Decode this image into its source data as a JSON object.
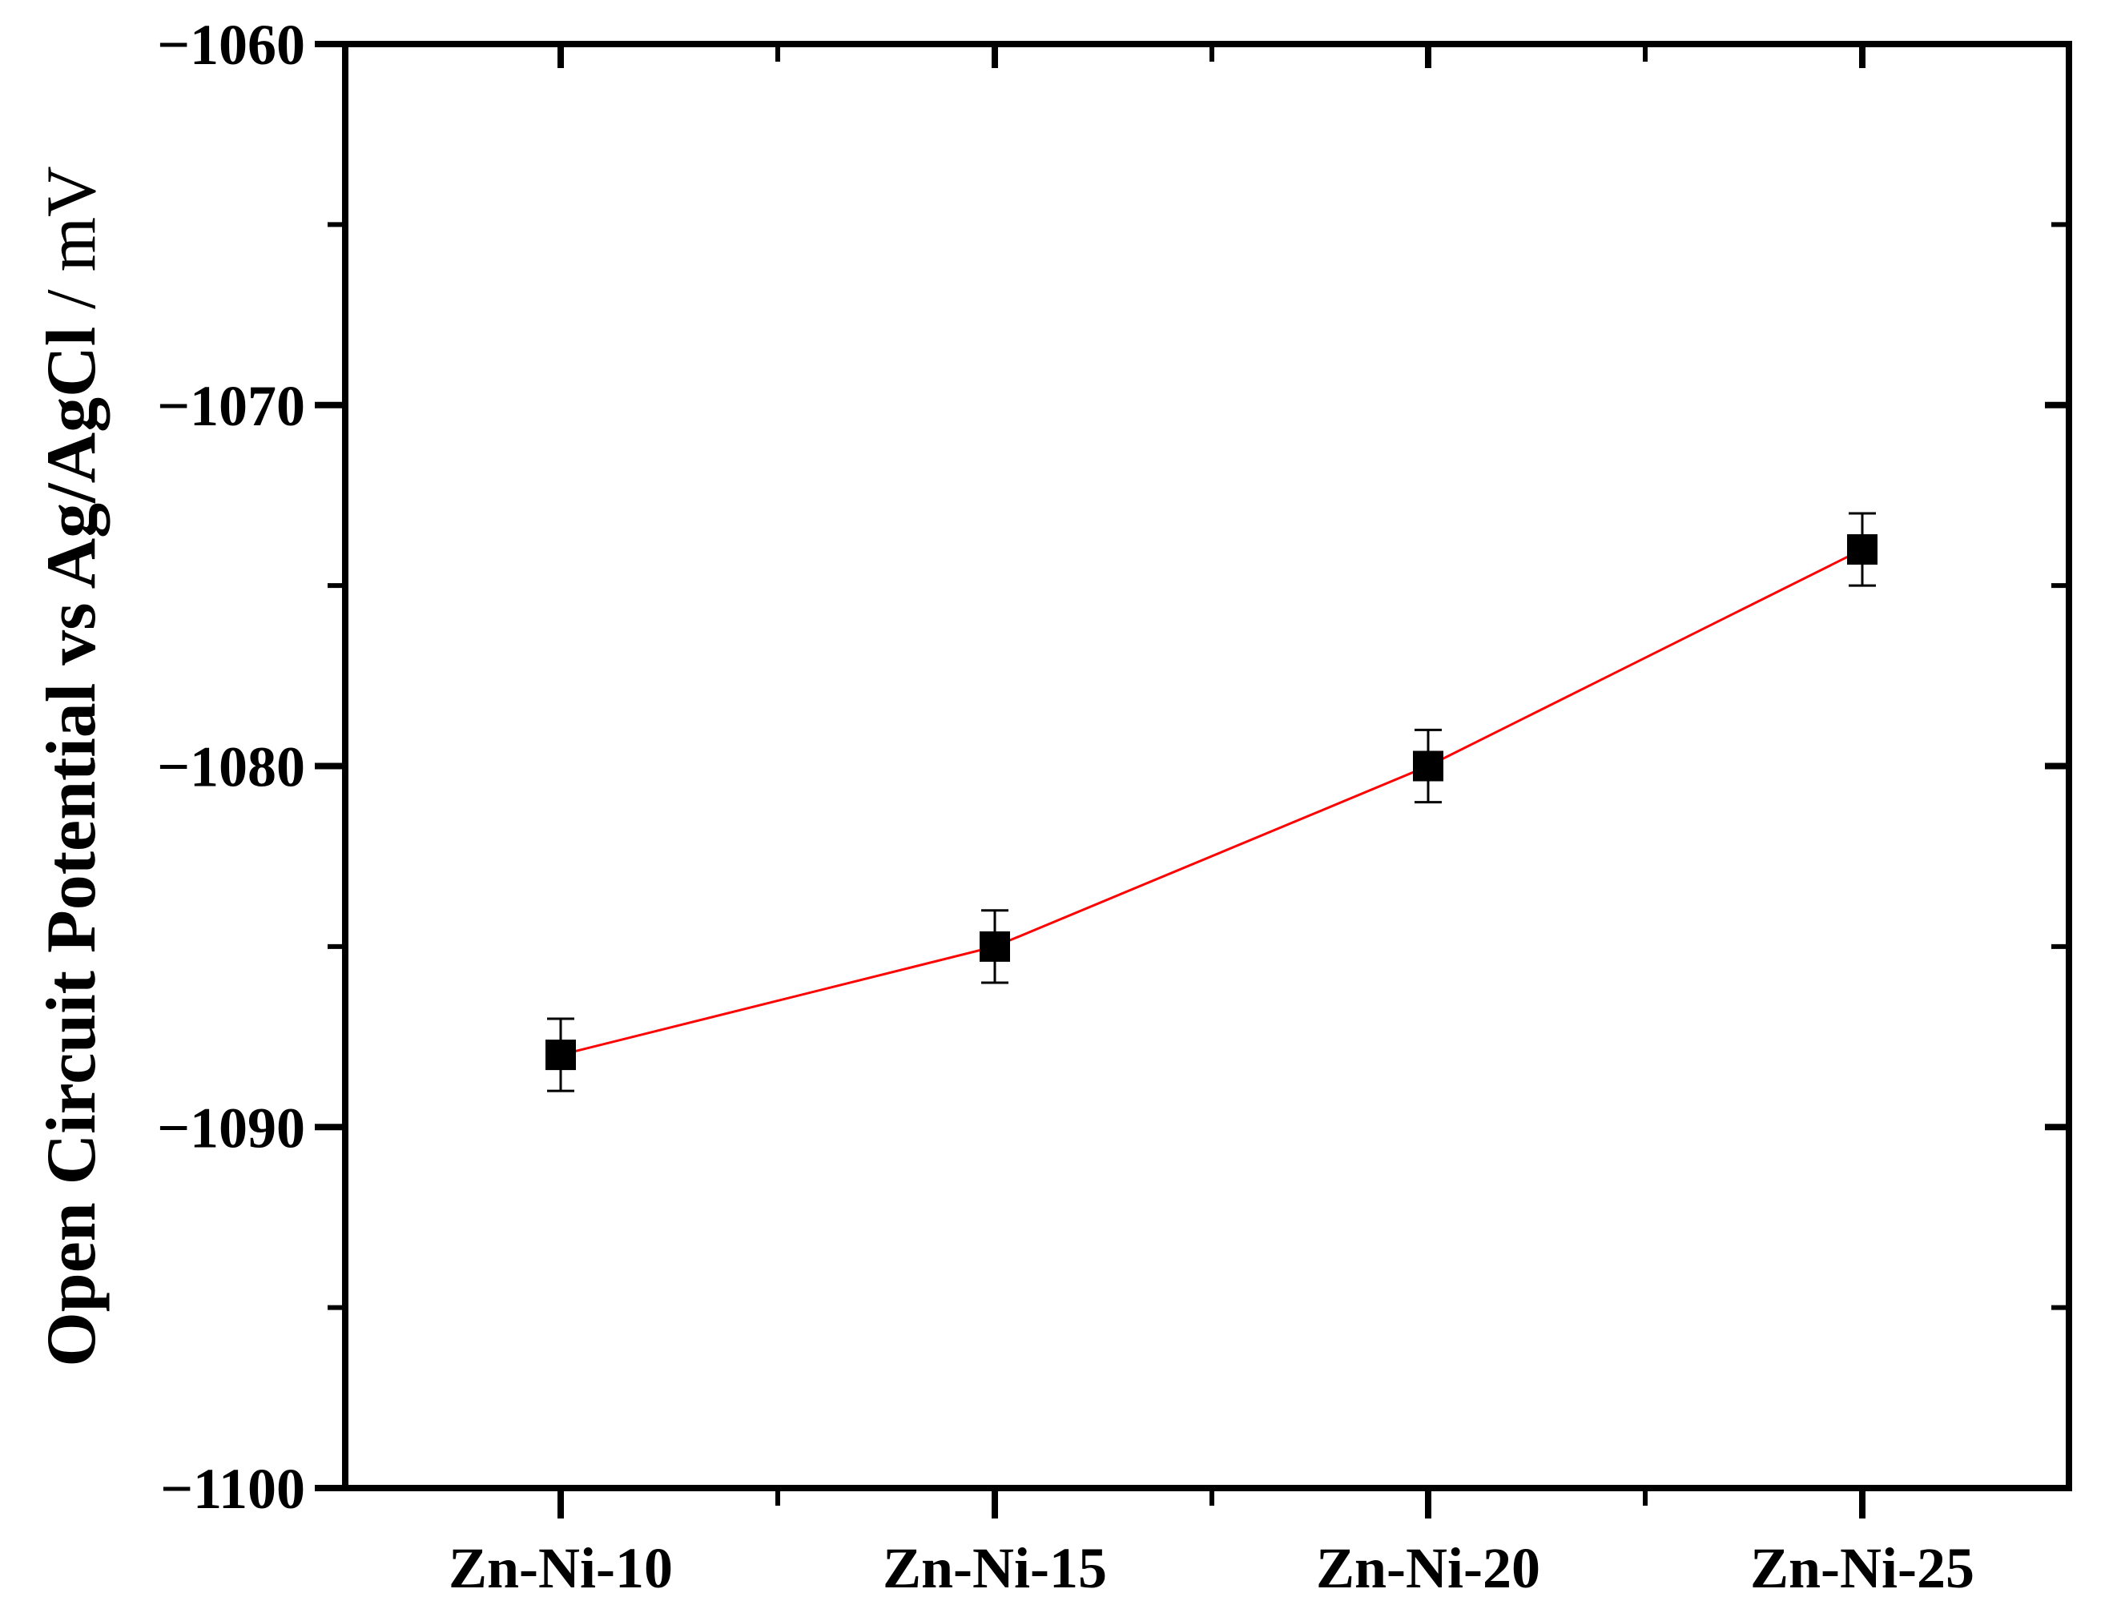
{
  "chart_data": {
    "type": "line",
    "categories": [
      "Zn-Ni-10",
      "Zn-Ni-15",
      "Zn-Ni-20",
      "Zn-Ni-25"
    ],
    "series": [
      {
        "values": [
          -1088,
          -1085,
          -1080,
          -1074
        ],
        "errors": [
          1,
          1,
          1,
          1
        ],
        "color": "#ff0000",
        "marker": "square",
        "marker_color": "#000000"
      }
    ],
    "ylabel_bold": "Open Circuit Potential vs Ag/AgCl",
    "ylabel_unit": " / mV",
    "xlabel": "",
    "ylim": [
      -1100,
      -1060
    ],
    "yticks": [
      -1100,
      -1090,
      -1080,
      -1070,
      -1060
    ],
    "ytick_labels": [
      "−1100",
      "−1090",
      "−1080",
      "−1070",
      "−1060"
    ],
    "grid": false,
    "legend": "none"
  }
}
